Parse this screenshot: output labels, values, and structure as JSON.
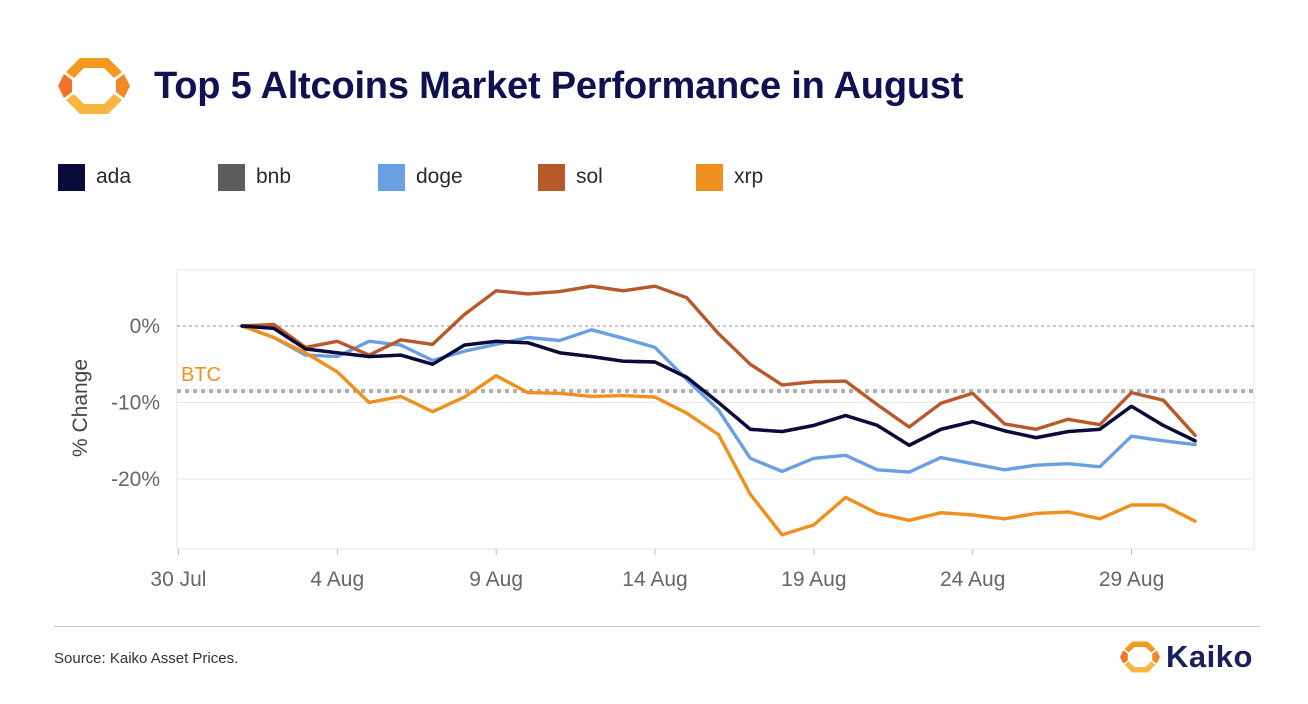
{
  "header": {
    "title": "Top 5 Altcoins Market Performance in August"
  },
  "footer": {
    "source": "Source: Kaiko Asset Prices.",
    "brand": "Kaiko"
  },
  "colors": {
    "title": "#0f1150",
    "ada": "#0a0a3c",
    "bnb": "#5c5c5c",
    "doge": "#6aa0e3",
    "sol": "#b7592a",
    "xrp": "#ef8f1e",
    "btc_reference": "#b0b0b0",
    "logo_orange": "#f39a1e"
  },
  "chart_data": {
    "type": "line",
    "ylabel": "% Change",
    "ylim": [
      -29,
      7
    ],
    "grid": true,
    "legend_position": "top-left",
    "x_ticks": [
      {
        "day": 0,
        "label": "30 Jul"
      },
      {
        "day": 5,
        "label": "4 Aug"
      },
      {
        "day": 10,
        "label": "9 Aug"
      },
      {
        "day": 15,
        "label": "14 Aug"
      },
      {
        "day": 20,
        "label": "19 Aug"
      },
      {
        "day": 25,
        "label": "24 Aug"
      },
      {
        "day": 30,
        "label": "29 Aug"
      }
    ],
    "y_ticks": [
      {
        "value": 0,
        "label": "0%"
      },
      {
        "value": -10,
        "label": "-10%"
      },
      {
        "value": -20,
        "label": "-20%"
      }
    ],
    "reference_lines": [
      {
        "label": "BTC",
        "value": -8.5
      }
    ],
    "zero_line": 0,
    "x_start_day": 2,
    "series": [
      {
        "name": "ada",
        "color_key": "ada",
        "values": [
          0,
          -0.3,
          -3,
          -3.5,
          -4,
          -3.8,
          -5,
          -2.5,
          -2,
          -2.2,
          -3.5,
          -4,
          -4.6,
          -4.7,
          -6.7,
          -10,
          -13.5,
          -13.8,
          -13,
          -11.7,
          -13,
          -15.6,
          -13.5,
          -12.5,
          -13.7,
          -14.6,
          -13.8,
          -13.5,
          -10.5,
          -13,
          -15
        ]
      },
      {
        "name": "bnb",
        "color_key": "bnb",
        "values": [
          0,
          -0.3,
          -3,
          -3.5,
          -4,
          -3.8,
          -5,
          -2.5,
          -2,
          -2.2,
          -3.5,
          -4,
          -4.6,
          -4.7,
          -6.7,
          -10,
          -13.5,
          -13.8,
          -13,
          -11.7,
          -13,
          -15.6,
          -13.5,
          -12.5,
          -13.7,
          -14.6,
          -13.8,
          -13.5,
          -10.5,
          -13,
          -15
        ]
      },
      {
        "name": "doge",
        "color_key": "doge",
        "values": [
          0,
          -1.5,
          -3.8,
          -4,
          -2,
          -2.5,
          -4.5,
          -3.3,
          -2.4,
          -1.5,
          -1.9,
          -0.5,
          -1.6,
          -2.8,
          -7,
          -11,
          -17.3,
          -19,
          -17.3,
          -16.9,
          -18.8,
          -19.1,
          -17.2,
          -18,
          -18.8,
          -18.2,
          -18,
          -18.4,
          -14.4,
          -15,
          -15.5
        ]
      },
      {
        "name": "sol",
        "color_key": "sol",
        "values": [
          0,
          0.2,
          -2.8,
          -2,
          -3.8,
          -1.8,
          -2.4,
          1.5,
          4.6,
          4.2,
          4.5,
          5.2,
          4.6,
          5.2,
          3.7,
          -1,
          -5,
          -7.7,
          -7.3,
          -7.2,
          -10.3,
          -13.2,
          -10.1,
          -8.8,
          -12.8,
          -13.5,
          -12.2,
          -12.9,
          -8.7,
          -9.7,
          -14.3
        ]
      },
      {
        "name": "xrp",
        "color_key": "xrp",
        "values": [
          0,
          -1.5,
          -3.5,
          -6,
          -10,
          -9.2,
          -11.2,
          -9.3,
          -6.5,
          -8.7,
          -8.8,
          -9.2,
          -9.1,
          -9.3,
          -11.4,
          -14.2,
          -22,
          -27.3,
          -26,
          -22.4,
          -24.5,
          -25.4,
          -24.4,
          -24.7,
          -25.2,
          -24.5,
          -24.3,
          -25.2,
          -23.4,
          -23.4,
          -25.5
        ]
      }
    ]
  }
}
